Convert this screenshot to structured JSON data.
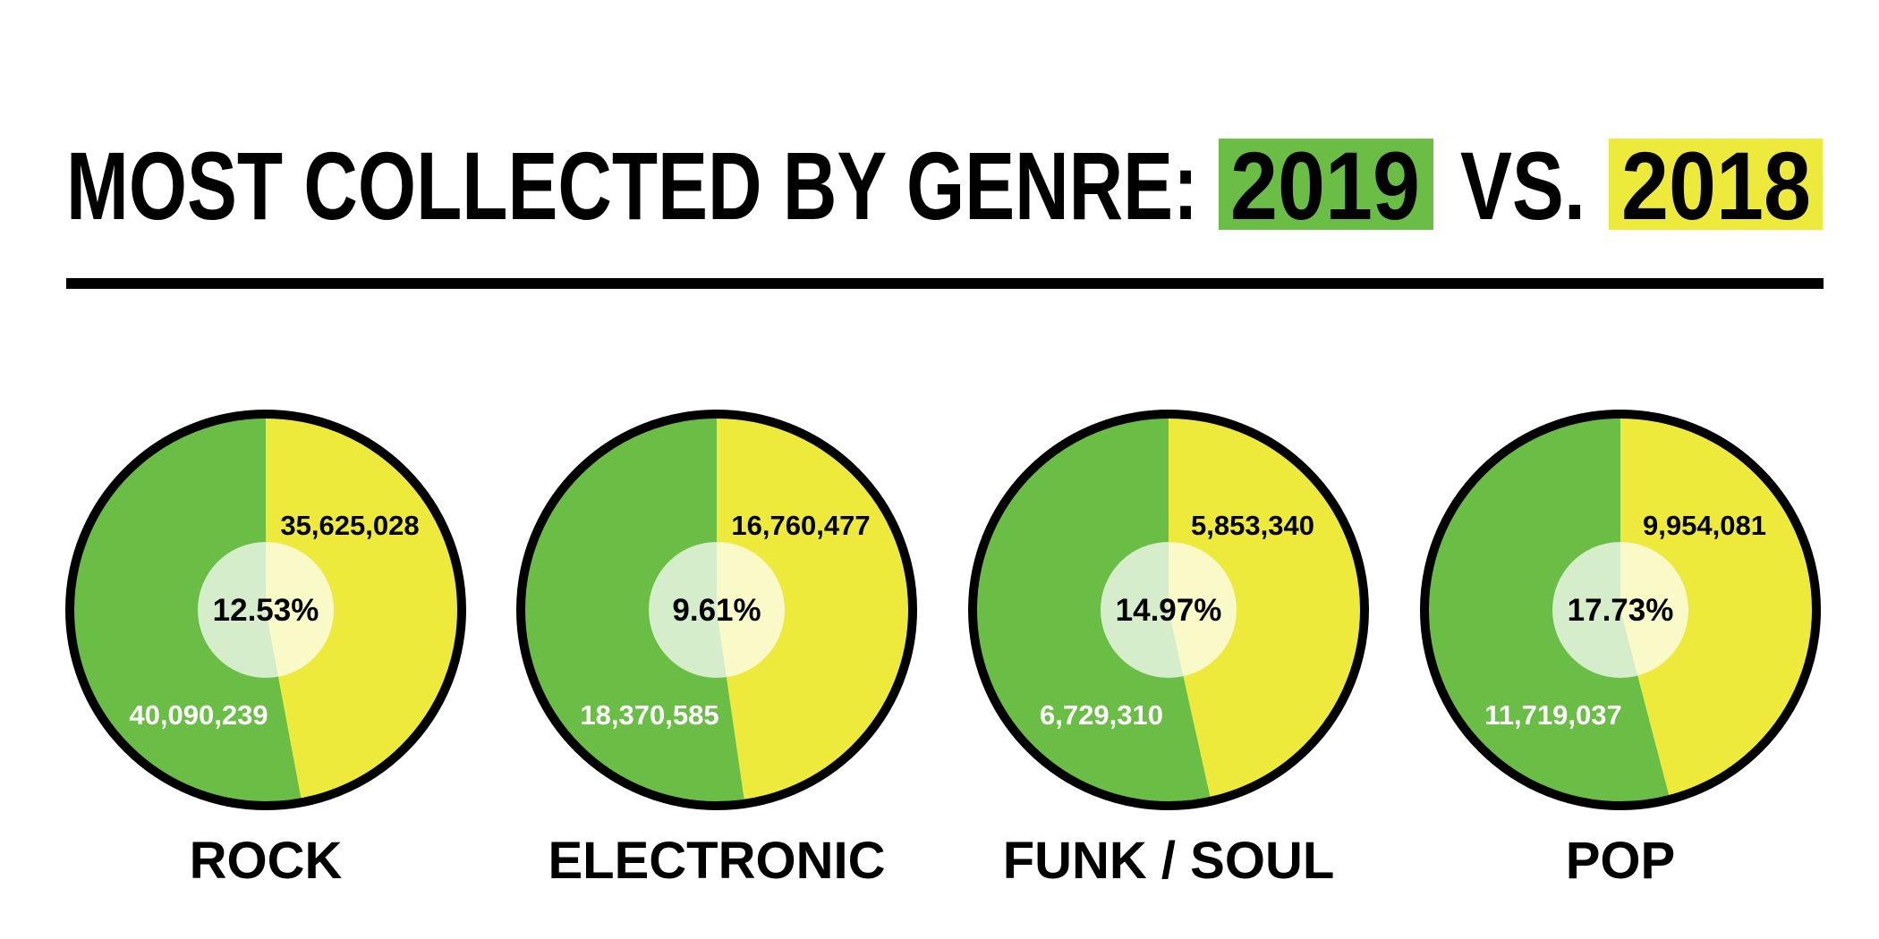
{
  "title": {
    "prefix": "MOST COLLECTED BY GENRE:",
    "year_a": "2019",
    "separator": "VS.",
    "year_b": "2018"
  },
  "colors": {
    "series_2019": "#6abd45",
    "series_2018": "#eeea3c",
    "outline": "#000000",
    "center_disc": "#ffffff"
  },
  "chart_data": {
    "type": "pie",
    "title": "MOST COLLECTED BY GENRE: 2019 VS. 2018",
    "categories": [
      "ROCK",
      "ELECTRONIC",
      "FUNK / SOUL",
      "POP"
    ],
    "series": [
      {
        "name": "2019",
        "values": [
          40090239,
          18370585,
          6729310,
          11719037
        ]
      },
      {
        "name": "2018",
        "values": [
          35625028,
          16760477,
          5853340,
          9954081
        ]
      }
    ],
    "value_labels": {
      "2019": [
        "40,090,239",
        "18,370,585",
        "6,729,310",
        "11,719,037"
      ],
      "2018": [
        "35,625,028",
        "16,760,477",
        "5,853,340",
        "9,954,081"
      ]
    },
    "change_labels": [
      "12.53%",
      "9.61%",
      "14.97%",
      "17.73%"
    ]
  }
}
